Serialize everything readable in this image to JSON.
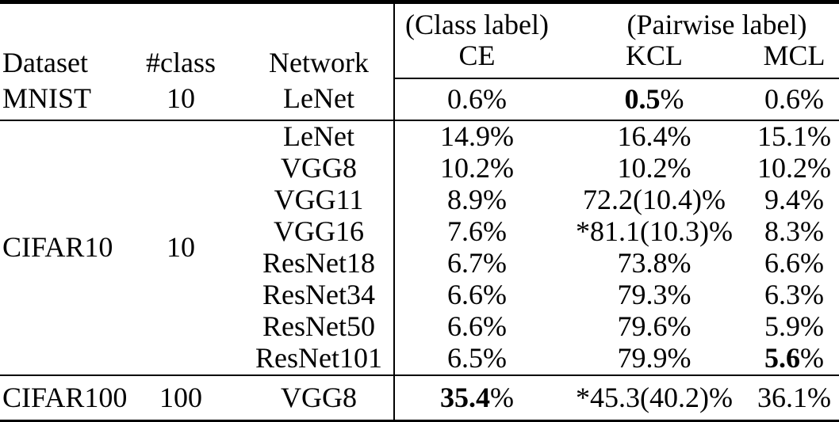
{
  "page": {
    "background_color": "#ffffff",
    "text_color": "#000000",
    "rule_color": "#000000"
  },
  "table": {
    "header": {
      "dataset": "Dataset",
      "num_class": "#class",
      "network": "Network",
      "class_label_group": "(Class label)",
      "pairwise_label_group": "(Pairwise label)",
      "ce": "CE",
      "kcl": "KCL",
      "mcl": "MCL"
    },
    "groups": [
      {
        "dataset": "MNIST",
        "num_class": "10",
        "rows": [
          {
            "network": "LeNet",
            "ce": {
              "t": "0.6%"
            },
            "kcl": {
              "t": "0.5%",
              "b": "0.5"
            },
            "mcl": {
              "t": "0.6%"
            }
          }
        ]
      },
      {
        "dataset": "CIFAR10",
        "num_class": "10",
        "rows": [
          {
            "network": "LeNet",
            "ce": {
              "t": "14.9%"
            },
            "kcl": {
              "t": "16.4%"
            },
            "mcl": {
              "t": "15.1%"
            }
          },
          {
            "network": "VGG8",
            "ce": {
              "t": "10.2%"
            },
            "kcl": {
              "t": "10.2%"
            },
            "mcl": {
              "t": "10.2%"
            }
          },
          {
            "network": "VGG11",
            "ce": {
              "t": "8.9%"
            },
            "kcl": {
              "t": "72.2(10.4)%"
            },
            "mcl": {
              "t": "9.4%"
            }
          },
          {
            "network": "VGG16",
            "ce": {
              "t": "7.6%"
            },
            "kcl": {
              "t": "*81.1(10.3)%"
            },
            "mcl": {
              "t": "8.3%"
            }
          },
          {
            "network": "ResNet18",
            "ce": {
              "t": "6.7%"
            },
            "kcl": {
              "t": "73.8%"
            },
            "mcl": {
              "t": "6.6%"
            }
          },
          {
            "network": "ResNet34",
            "ce": {
              "t": "6.6%"
            },
            "kcl": {
              "t": "79.3%"
            },
            "mcl": {
              "t": "6.3%"
            }
          },
          {
            "network": "ResNet50",
            "ce": {
              "t": "6.6%"
            },
            "kcl": {
              "t": "79.6%"
            },
            "mcl": {
              "t": "5.9%"
            }
          },
          {
            "network": "ResNet101",
            "ce": {
              "t": "6.5%"
            },
            "kcl": {
              "t": "79.9%"
            },
            "mcl": {
              "t": "5.6%",
              "b": "5.6"
            }
          }
        ]
      },
      {
        "dataset": "CIFAR100",
        "num_class": "100",
        "rows": [
          {
            "network": "VGG8",
            "ce": {
              "t": "35.4%",
              "b": "35.4"
            },
            "kcl": {
              "t": "*45.3(40.2)%"
            },
            "mcl": {
              "t": "36.1%"
            }
          }
        ]
      }
    ]
  }
}
